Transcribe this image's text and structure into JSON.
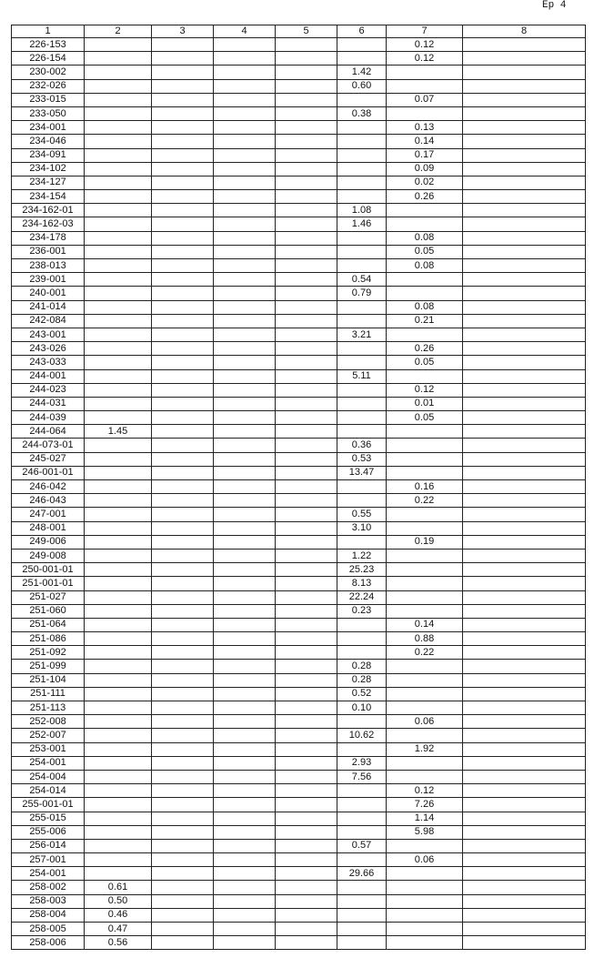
{
  "header": {
    "page_label": "Ep 4"
  },
  "table": {
    "headers": [
      "1",
      "2",
      "3",
      "4",
      "5",
      "6",
      "7",
      "8"
    ],
    "rows": [
      {
        "id": "226-153",
        "c7": "0.12"
      },
      {
        "id": "226-154",
        "c7": "0.12"
      },
      {
        "id": "230-002",
        "c6": "1.42"
      },
      {
        "id": "232-026",
        "c6": "0.60"
      },
      {
        "id": "233-015",
        "c7": "0.07"
      },
      {
        "id": "233-050",
        "c6": "0.38"
      },
      {
        "id": "234-001",
        "c7": "0.13"
      },
      {
        "id": "234-046",
        "c7": "0.14"
      },
      {
        "id": "234-091",
        "c7": "0.17"
      },
      {
        "id": "234-102",
        "c7": "0.09"
      },
      {
        "id": "234-127",
        "c7": "0.02"
      },
      {
        "id": "234-154",
        "c7": "0.26"
      },
      {
        "id": "234-162-01",
        "c6": "1.08"
      },
      {
        "id": "234-162-03",
        "c6": "1.46"
      },
      {
        "id": "234-178",
        "c7": "0.08"
      },
      {
        "id": "236-001",
        "c7": "0.05"
      },
      {
        "id": "238-013",
        "c7": "0.08"
      },
      {
        "id": "239-001",
        "c6": "0.54"
      },
      {
        "id": "240-001",
        "c6": "0.79"
      },
      {
        "id": "241-014",
        "c7": "0.08"
      },
      {
        "id": "242-084",
        "c7": "0.21"
      },
      {
        "id": "243-001",
        "c6": "3.21"
      },
      {
        "id": "243-026",
        "c7": "0.26"
      },
      {
        "id": "243-033",
        "c7": "0.05"
      },
      {
        "id": "244-001",
        "c6": "5.11"
      },
      {
        "id": "244-023",
        "c7": "0.12"
      },
      {
        "id": "244-031",
        "c7": "0.01"
      },
      {
        "id": "244-039",
        "c7": "0.05"
      },
      {
        "id": "244-064",
        "c2": "1.45"
      },
      {
        "id": "244-073-01",
        "c6": "0.36"
      },
      {
        "id": "245-027",
        "c6": "0.53"
      },
      {
        "id": "246-001-01",
        "c6": "13.47"
      },
      {
        "id": "246-042",
        "c7": "0.16"
      },
      {
        "id": "246-043",
        "c7": "0.22"
      },
      {
        "id": "247-001",
        "c6": "0.55"
      },
      {
        "id": "248-001",
        "c6": "3.10"
      },
      {
        "id": "249-006",
        "c7": "0.19"
      },
      {
        "id": "249-008",
        "c6": "1.22"
      },
      {
        "id": "250-001-01",
        "c6": "25.23"
      },
      {
        "id": "251-001-01",
        "c6": "8.13"
      },
      {
        "id": "251-027",
        "c6": "22.24"
      },
      {
        "id": "251-060",
        "c6": "0.23"
      },
      {
        "id": "251-064",
        "c7": "0.14"
      },
      {
        "id": "251-086",
        "c7": "0.88"
      },
      {
        "id": "251-092",
        "c7": "0.22"
      },
      {
        "id": "251-099",
        "c6": "0.28"
      },
      {
        "id": "251-104",
        "c6": "0.28"
      },
      {
        "id": "251-111",
        "c6": "0.52"
      },
      {
        "id": "251-113",
        "c6": "0.10"
      },
      {
        "id": "252-008",
        "c7": "0.06"
      },
      {
        "id": "252-007",
        "c6": "10.62"
      },
      {
        "id": "253-001",
        "c7": "1.92"
      },
      {
        "id": "254-001",
        "c6": "2.93"
      },
      {
        "id": "254-004",
        "c6": "7.56"
      },
      {
        "id": "254-014",
        "c7": "0.12"
      },
      {
        "id": "255-001-01",
        "c7": "7.26"
      },
      {
        "id": "255-015",
        "c7": "1.14"
      },
      {
        "id": "255-006",
        "c7": "5.98"
      },
      {
        "id": "256-014",
        "c6": "0.57"
      },
      {
        "id": "257-001",
        "c7": "0.06"
      },
      {
        "id": "254-001",
        "c6": "29.66"
      },
      {
        "id": "258-002",
        "c2": "0.61"
      },
      {
        "id": "258-003",
        "c2": "0.50"
      },
      {
        "id": "258-004",
        "c2": "0.46"
      },
      {
        "id": "258-005",
        "c2": "0.47"
      },
      {
        "id": "258-006",
        "c2": "0.56"
      }
    ]
  }
}
